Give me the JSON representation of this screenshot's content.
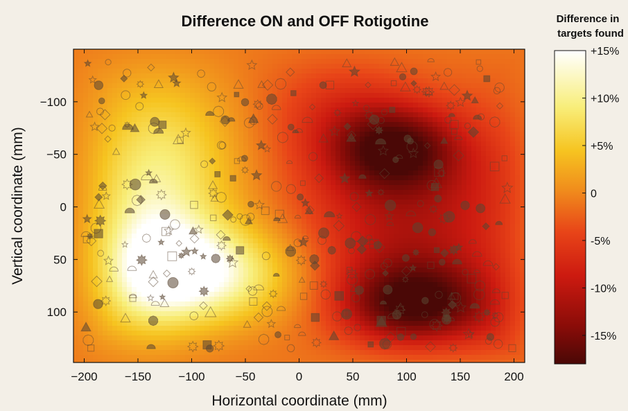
{
  "chart_data": {
    "type": "heatmap",
    "title": "Difference ON and OFF Rotigotine",
    "xlabel": "Horizontal coordinate (mm)",
    "ylabel": "Vertical coordinate (mm)",
    "xlim": [
      -210,
      210
    ],
    "ylim": [
      -150,
      148
    ],
    "y_inverted": true,
    "x_ticks": [
      -200,
      -150,
      -100,
      -50,
      0,
      50,
      100,
      150,
      200
    ],
    "x_tick_labels": [
      "−200",
      "−150",
      "−100",
      "−50",
      "0",
      "50",
      "100",
      "150",
      "200"
    ],
    "y_ticks": [
      -100,
      -50,
      0,
      50,
      100
    ],
    "y_tick_labels": [
      "−100",
      "−50",
      "0",
      "50",
      "100"
    ],
    "colorbar": {
      "title_line1": "Difference in",
      "title_line2": "targets found",
      "range": [
        -18,
        15
      ],
      "ticks": [
        15,
        10,
        5,
        0,
        -5,
        -10,
        -15
      ],
      "tick_labels": [
        "+15%",
        "+10%",
        "+5%",
        "0",
        "-5%",
        "-10%",
        "-15%"
      ],
      "colors": [
        "#4a0806",
        "#8a0c08",
        "#cc1a10",
        "#e84418",
        "#f08a1c",
        "#f6c420",
        "#f8ee7a",
        "#ffffff"
      ]
    },
    "field": {
      "base": -1,
      "peaks": [
        {
          "x": -85,
          "y": 65,
          "amp": 14,
          "sx": 60,
          "sy": 35
        },
        {
          "x": -130,
          "y": -40,
          "amp": 10,
          "sx": 55,
          "sy": 70
        },
        {
          "x": -145,
          "y": 60,
          "amp": 8,
          "sx": 40,
          "sy": 60
        },
        {
          "x": 105,
          "y": 95,
          "amp": -16,
          "sx": 45,
          "sy": 28
        },
        {
          "x": 90,
          "y": -55,
          "amp": -14,
          "sx": 40,
          "sy": 28
        },
        {
          "x": 100,
          "y": 20,
          "amp": -9,
          "sx": 70,
          "sy": 60
        },
        {
          "x": 40,
          "y": -90,
          "amp": -5,
          "sx": 50,
          "sy": 40
        },
        {
          "x": 190,
          "y": -40,
          "amp": -3,
          "sx": 40,
          "sy": 50
        },
        {
          "x": 190,
          "y": 100,
          "amp": -4,
          "sx": 40,
          "sy": 40
        }
      ]
    }
  }
}
